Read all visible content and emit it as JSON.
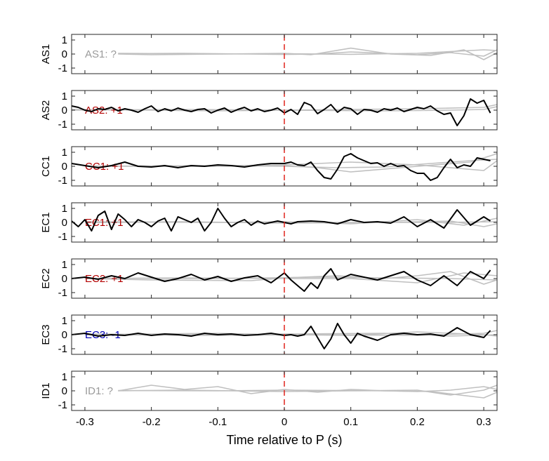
{
  "figure": {
    "xlabel": "Time relative to P (s)"
  },
  "chart_data": {
    "type": "line",
    "xlabel": "Time relative to P (s)",
    "xlim": [
      -0.32,
      0.32
    ],
    "xticks": [
      -0.3,
      -0.2,
      -0.1,
      0,
      0.1,
      0.2,
      0.3
    ],
    "xtick_labels": [
      "-0.3",
      "-0.2",
      "-0.1",
      "0",
      "0.1",
      "0.2",
      "0.3"
    ],
    "ylim": [
      -1.4,
      1.4
    ],
    "yticks": [
      -1,
      0,
      1
    ],
    "ytick_labels": [
      "-1",
      "0",
      "1"
    ],
    "marker_line": {
      "x": 0,
      "color": "#e0231b",
      "style": "dashed"
    },
    "colors": {
      "polarity_positive": "#b30000",
      "polarity_negative": "#0000b3",
      "polarity_unknown": "#9a9a9a",
      "trace_main": "#000000",
      "trace_background": "#c0c0c0"
    },
    "panels": [
      {
        "ylabel": "AS1",
        "polarity_label": "AS1: ?",
        "polarity": "unknown",
        "trace": null,
        "background": [
          {
            "x": [
              -0.25,
              -0.15,
              -0.05,
              0.0,
              0.05,
              0.1,
              0.15,
              0.2,
              0.25,
              0.3,
              0.32
            ],
            "y": [
              0.02,
              0.05,
              0.0,
              -0.03,
              0.0,
              0.15,
              0.05,
              -0.05,
              0.1,
              -0.15,
              0.3
            ]
          },
          {
            "x": [
              -0.25,
              -0.2,
              -0.1,
              0.0,
              0.04,
              0.1,
              0.16,
              0.22,
              0.27,
              0.3,
              0.32
            ],
            "y": [
              0.0,
              -0.05,
              0.0,
              0.05,
              -0.05,
              0.42,
              0.0,
              -0.1,
              0.3,
              -0.4,
              0.1
            ]
          },
          {
            "x": [
              -0.25,
              -0.1,
              0.0,
              0.1,
              0.2,
              0.26,
              0.3,
              0.32
            ],
            "y": [
              0.05,
              0.0,
              0.02,
              -0.02,
              0.05,
              0.2,
              0.3,
              0.25
            ]
          }
        ]
      },
      {
        "ylabel": "AS2",
        "polarity_label": "AS2: +1",
        "polarity": "positive",
        "trace": {
          "x": [
            -0.32,
            -0.31,
            -0.3,
            -0.29,
            -0.28,
            -0.27,
            -0.26,
            -0.25,
            -0.24,
            -0.23,
            -0.22,
            -0.21,
            -0.2,
            -0.19,
            -0.18,
            -0.17,
            -0.16,
            -0.15,
            -0.14,
            -0.13,
            -0.12,
            -0.11,
            -0.1,
            -0.09,
            -0.08,
            -0.07,
            -0.06,
            -0.05,
            -0.04,
            -0.03,
            -0.02,
            -0.01,
            0.0,
            0.01,
            0.02,
            0.03,
            0.04,
            0.05,
            0.06,
            0.07,
            0.08,
            0.09,
            0.1,
            0.11,
            0.12,
            0.13,
            0.14,
            0.15,
            0.16,
            0.17,
            0.18,
            0.19,
            0.2,
            0.21,
            0.22,
            0.23,
            0.24,
            0.25,
            0.26,
            0.27,
            0.28,
            0.29,
            0.3,
            0.31
          ],
          "y": [
            0.3,
            0.2,
            0.0,
            -0.1,
            0.1,
            0.05,
            0.2,
            -0.05,
            0.1,
            0.0,
            -0.15,
            0.1,
            0.3,
            -0.1,
            0.1,
            -0.05,
            0.15,
            0.0,
            -0.1,
            0.05,
            0.1,
            -0.2,
            0.0,
            0.15,
            -0.15,
            0.05,
            0.2,
            -0.05,
            0.1,
            -0.1,
            0.0,
            0.15,
            -0.2,
            0.05,
            -0.3,
            0.55,
            0.35,
            -0.25,
            0.05,
            0.4,
            -0.15,
            0.2,
            0.1,
            -0.3,
            0.05,
            0.0,
            -0.15,
            0.1,
            0.0,
            0.15,
            -0.1,
            0.05,
            0.2,
            0.1,
            0.3,
            -0.05,
            -0.3,
            -0.2,
            -1.1,
            -0.4,
            0.8,
            0.5,
            0.7,
            -0.2
          ]
        },
        "background": [
          {
            "x": [
              -0.32,
              -0.2,
              -0.1,
              0.0,
              0.1,
              0.2,
              0.3,
              0.32
            ],
            "y": [
              0.05,
              0.0,
              -0.05,
              0.0,
              0.05,
              0.1,
              0.2,
              0.4
            ]
          },
          {
            "x": [
              -0.32,
              -0.15,
              0.0,
              0.15,
              0.25,
              0.3,
              0.32
            ],
            "y": [
              0.0,
              0.05,
              0.0,
              -0.05,
              0.0,
              0.05,
              0.25
            ]
          }
        ]
      },
      {
        "ylabel": "CC1",
        "polarity_label": "CC1: +1",
        "polarity": "positive",
        "trace": {
          "x": [
            -0.32,
            -0.3,
            -0.28,
            -0.26,
            -0.24,
            -0.22,
            -0.2,
            -0.18,
            -0.16,
            -0.14,
            -0.12,
            -0.1,
            -0.08,
            -0.06,
            -0.04,
            -0.02,
            0.0,
            0.01,
            0.02,
            0.03,
            0.04,
            0.05,
            0.06,
            0.07,
            0.08,
            0.09,
            0.1,
            0.11,
            0.12,
            0.13,
            0.14,
            0.15,
            0.16,
            0.17,
            0.18,
            0.19,
            0.2,
            0.21,
            0.22,
            0.23,
            0.24,
            0.25,
            0.26,
            0.27,
            0.28,
            0.29,
            0.3,
            0.31
          ],
          "y": [
            0.2,
            0.05,
            -0.1,
            0.05,
            0.3,
            0.0,
            -0.05,
            0.05,
            -0.1,
            0.05,
            0.0,
            0.1,
            0.05,
            -0.05,
            0.1,
            0.2,
            0.2,
            0.3,
            0.1,
            0.05,
            0.3,
            -0.3,
            -0.8,
            -0.9,
            -0.2,
            0.7,
            0.9,
            0.6,
            0.4,
            0.2,
            0.25,
            0.0,
            0.2,
            0.0,
            0.05,
            -0.3,
            -0.5,
            -0.5,
            -1.0,
            -0.8,
            -0.1,
            0.5,
            -0.1,
            0.1,
            0.0,
            0.6,
            0.5,
            0.4
          ]
        },
        "background": [
          {
            "x": [
              -0.3,
              -0.1,
              0.0,
              0.05,
              0.1,
              0.2,
              0.28,
              0.32
            ],
            "y": [
              0.0,
              0.0,
              0.05,
              -0.1,
              -0.4,
              0.0,
              0.3,
              0.9
            ]
          },
          {
            "x": [
              -0.3,
              -0.1,
              0.0,
              0.08,
              0.15,
              0.22,
              0.28,
              0.32
            ],
            "y": [
              0.0,
              0.05,
              0.0,
              -0.1,
              -0.05,
              0.2,
              0.4,
              0.5
            ]
          },
          {
            "x": [
              -0.3,
              -0.15,
              0.0,
              0.1,
              0.2,
              0.3,
              0.32
            ],
            "y": [
              0.02,
              0.0,
              0.1,
              0.3,
              0.1,
              -0.3,
              0.4
            ]
          }
        ]
      },
      {
        "ylabel": "EC1",
        "polarity_label": "EC1: +1",
        "polarity": "positive",
        "trace": {
          "x": [
            -0.32,
            -0.31,
            -0.3,
            -0.29,
            -0.28,
            -0.27,
            -0.26,
            -0.25,
            -0.24,
            -0.23,
            -0.22,
            -0.21,
            -0.2,
            -0.19,
            -0.18,
            -0.17,
            -0.16,
            -0.15,
            -0.14,
            -0.13,
            -0.12,
            -0.11,
            -0.1,
            -0.09,
            -0.08,
            -0.07,
            -0.06,
            -0.05,
            -0.04,
            -0.03,
            -0.02,
            -0.01,
            0.0,
            0.01,
            0.02,
            0.04,
            0.06,
            0.08,
            0.1,
            0.12,
            0.14,
            0.16,
            0.18,
            0.2,
            0.22,
            0.24,
            0.26,
            0.28,
            0.3,
            0.31
          ],
          "y": [
            0.1,
            -0.3,
            0.2,
            -0.6,
            0.5,
            0.8,
            -0.5,
            0.6,
            0.2,
            -0.3,
            0.2,
            0.0,
            -0.3,
            0.1,
            0.3,
            -0.6,
            0.4,
            0.2,
            0.0,
            0.3,
            -0.6,
            0.0,
            1.0,
            0.3,
            -0.3,
            0.0,
            0.2,
            -0.2,
            0.1,
            -0.1,
            0.0,
            0.1,
            0.0,
            -0.1,
            0.05,
            0.1,
            0.05,
            -0.1,
            0.2,
            0.0,
            0.05,
            -0.05,
            0.4,
            -0.3,
            0.2,
            -0.4,
            0.9,
            -0.2,
            0.4,
            0.1
          ]
        },
        "background": [
          {
            "x": [
              -0.3,
              -0.15,
              0.0,
              0.15,
              0.25,
              0.3,
              0.32
            ],
            "y": [
              0.0,
              0.05,
              -0.05,
              0.0,
              0.1,
              -0.3,
              -0.1
            ]
          },
          {
            "x": [
              -0.3,
              -0.1,
              0.0,
              0.1,
              0.2,
              0.27,
              0.32
            ],
            "y": [
              0.05,
              0.0,
              0.05,
              -0.1,
              0.2,
              -0.2,
              0.3
            ]
          },
          {
            "x": [
              -0.3,
              -0.2,
              0.0,
              0.12,
              0.24,
              0.32
            ],
            "y": [
              -0.02,
              0.02,
              0.0,
              0.0,
              0.0,
              0.05
            ]
          }
        ]
      },
      {
        "ylabel": "EC2",
        "polarity_label": "EC2: +1",
        "polarity": "positive",
        "trace": {
          "x": [
            -0.32,
            -0.3,
            -0.28,
            -0.26,
            -0.24,
            -0.22,
            -0.2,
            -0.18,
            -0.16,
            -0.14,
            -0.12,
            -0.1,
            -0.08,
            -0.06,
            -0.04,
            -0.02,
            0.0,
            0.01,
            0.02,
            0.03,
            0.04,
            0.05,
            0.06,
            0.07,
            0.08,
            0.1,
            0.12,
            0.14,
            0.16,
            0.18,
            0.2,
            0.22,
            0.24,
            0.26,
            0.28,
            0.3,
            0.31
          ],
          "y": [
            0.0,
            0.1,
            -0.05,
            0.2,
            0.0,
            0.4,
            0.1,
            -0.2,
            0.0,
            0.3,
            -0.1,
            0.15,
            -0.2,
            0.05,
            0.2,
            -0.3,
            0.4,
            -0.1,
            -0.5,
            -0.9,
            -0.3,
            -0.7,
            0.2,
            0.7,
            -0.1,
            0.3,
            0.1,
            -0.1,
            0.2,
            0.5,
            -0.1,
            -0.5,
            0.2,
            -0.5,
            0.5,
            0.0,
            0.6
          ]
        },
        "background": [
          {
            "x": [
              -0.3,
              -0.2,
              -0.05,
              0.0,
              0.08,
              0.15,
              0.2,
              0.25,
              0.3,
              0.32
            ],
            "y": [
              0.0,
              -0.1,
              -0.15,
              0.05,
              0.2,
              0.0,
              0.2,
              0.5,
              -0.4,
              -0.1
            ]
          },
          {
            "x": [
              -0.3,
              -0.15,
              0.0,
              0.1,
              0.2,
              0.27,
              0.32
            ],
            "y": [
              0.0,
              0.05,
              0.0,
              0.0,
              -0.3,
              0.4,
              0.2
            ]
          },
          {
            "x": [
              -0.3,
              -0.1,
              0.05,
              0.15,
              0.25,
              0.32
            ],
            "y": [
              0.02,
              0.0,
              0.1,
              0.05,
              0.0,
              -0.1
            ]
          }
        ]
      },
      {
        "ylabel": "EC3",
        "polarity_label": "EC3: -1",
        "polarity": "negative",
        "trace": {
          "x": [
            -0.32,
            -0.3,
            -0.28,
            -0.26,
            -0.24,
            -0.22,
            -0.2,
            -0.18,
            -0.16,
            -0.14,
            -0.12,
            -0.1,
            -0.08,
            -0.06,
            -0.04,
            -0.02,
            0.0,
            0.01,
            0.02,
            0.03,
            0.04,
            0.05,
            0.06,
            0.07,
            0.08,
            0.09,
            0.1,
            0.11,
            0.12,
            0.14,
            0.16,
            0.18,
            0.2,
            0.22,
            0.24,
            0.26,
            0.28,
            0.3,
            0.31
          ],
          "y": [
            0.0,
            0.1,
            -0.1,
            0.0,
            -0.05,
            0.1,
            -0.05,
            0.05,
            0.0,
            -0.1,
            0.1,
            0.0,
            0.05,
            -0.05,
            0.0,
            0.1,
            -0.05,
            0.0,
            -0.1,
            0.0,
            0.6,
            -0.2,
            -1.0,
            -0.3,
            0.8,
            0.0,
            -0.6,
            0.1,
            -0.1,
            -0.4,
            0.0,
            0.1,
            0.0,
            0.05,
            -0.1,
            0.5,
            0.0,
            -0.2,
            0.3
          ]
        },
        "background": [
          {
            "x": [
              -0.3,
              -0.2,
              -0.1,
              0.0,
              0.1,
              0.2,
              0.3,
              0.32
            ],
            "y": [
              0.0,
              0.05,
              0.1,
              0.0,
              -0.05,
              0.2,
              0.0,
              -0.1
            ]
          },
          {
            "x": [
              -0.3,
              -0.15,
              0.0,
              0.15,
              0.25,
              0.32
            ],
            "y": [
              0.05,
              0.0,
              0.05,
              0.1,
              -0.1,
              0.0
            ]
          },
          {
            "x": [
              -0.3,
              -0.1,
              0.05,
              0.2,
              0.3,
              0.32
            ],
            "y": [
              0.0,
              -0.05,
              0.0,
              -0.05,
              0.1,
              0.3
            ]
          }
        ]
      },
      {
        "ylabel": "ID1",
        "polarity_label": "ID1: ?",
        "polarity": "unknown",
        "trace": null,
        "background": [
          {
            "x": [
              -0.25,
              -0.2,
              -0.15,
              -0.1,
              -0.05,
              0.0,
              0.05,
              0.1,
              0.15,
              0.2,
              0.25,
              0.3,
              0.32
            ],
            "y": [
              0.0,
              0.4,
              0.1,
              0.3,
              -0.2,
              0.1,
              -0.1,
              0.1,
              0.0,
              -0.05,
              0.05,
              0.3,
              0.1
            ]
          },
          {
            "x": [
              -0.25,
              -0.15,
              0.0,
              0.1,
              0.2,
              0.25,
              0.3,
              0.32
            ],
            "y": [
              0.0,
              0.05,
              -0.05,
              0.0,
              0.05,
              -0.3,
              0.05,
              0.4
            ]
          },
          {
            "x": [
              -0.25,
              -0.1,
              0.0,
              0.15,
              0.22,
              0.3,
              0.32
            ],
            "y": [
              0.02,
              0.0,
              0.05,
              0.0,
              -0.05,
              -0.5,
              -0.1
            ]
          }
        ]
      }
    ]
  }
}
